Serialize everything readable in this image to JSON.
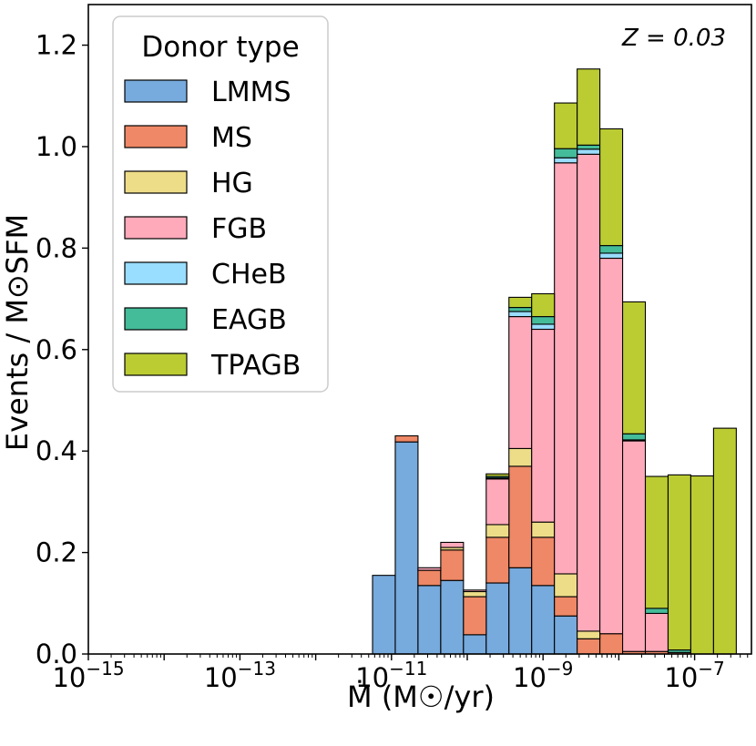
{
  "chart_data": {
    "type": "bar",
    "stacked": true,
    "x_scale": "log",
    "xlim_log10": [
      -15,
      -6.25
    ],
    "ylim": [
      0,
      1.28
    ],
    "x_tick_exponents": [
      -15,
      -13,
      -11,
      -9,
      -7
    ],
    "y_ticks": [
      "0.0",
      "0.2",
      "0.4",
      "0.6",
      "0.8",
      "1.0",
      "1.2"
    ],
    "y_tick_values": [
      0,
      0.2,
      0.4,
      0.6,
      0.8,
      1.0,
      1.2
    ],
    "xlabel": "Ṁ (M☉/yr)",
    "ylabel": "Events / M⊙SFM",
    "annotation": "Z = 0.03",
    "legend": {
      "title": "Donor type",
      "location": "top-left"
    },
    "bin_edges_log10": [
      -11.25,
      -10.95,
      -10.65,
      -10.35,
      -10.05,
      -9.75,
      -9.45,
      -9.15,
      -8.85,
      -8.55,
      -8.25,
      -7.95,
      -7.65,
      -7.35,
      -7.05,
      -6.75,
      -6.45
    ],
    "series": [
      {
        "name": "LMMS",
        "color": "#77aadd",
        "values": [
          0.155,
          0.418,
          0.135,
          0.145,
          0.038,
          0.14,
          0.17,
          0.135,
          0.075,
          0.0,
          0.0,
          0.0,
          0.0,
          0.0,
          0.0,
          0.0,
          0.0
        ]
      },
      {
        "name": "MS",
        "color": "#ee8866",
        "values": [
          0.0,
          0.012,
          0.03,
          0.06,
          0.075,
          0.09,
          0.2,
          0.095,
          0.038,
          0.03,
          0.04,
          0.005,
          0.005,
          0.003,
          0.0,
          0.0,
          0.0
        ]
      },
      {
        "name": "HG",
        "color": "#eedd88",
        "values": [
          0.0,
          0.0,
          0.0,
          0.005,
          0.01,
          0.025,
          0.035,
          0.03,
          0.045,
          0.015,
          0.0,
          0.0,
          0.0,
          0.0,
          0.0,
          0.0,
          0.0
        ]
      },
      {
        "name": "FGB",
        "color": "#ffaabb",
        "values": [
          0.0,
          0.0,
          0.005,
          0.01,
          0.003,
          0.09,
          0.26,
          0.38,
          0.81,
          0.94,
          0.74,
          0.415,
          0.075,
          0.0,
          0.0,
          0.0,
          0.0
        ]
      },
      {
        "name": "CHeB",
        "color": "#99ddff",
        "values": [
          0.0,
          0.0,
          0.0,
          0.0,
          0.0,
          0.002,
          0.01,
          0.01,
          0.01,
          0.01,
          0.01,
          0.002,
          0.0,
          0.0,
          0.0,
          0.0,
          0.0
        ]
      },
      {
        "name": "EAGB",
        "color": "#44bb99",
        "values": [
          0.0,
          0.0,
          0.0,
          0.0,
          0.0,
          0.003,
          0.008,
          0.015,
          0.018,
          0.008,
          0.015,
          0.012,
          0.01,
          0.005,
          0.0,
          0.0,
          0.0
        ]
      },
      {
        "name": "TPAGB",
        "color": "#bbcc33",
        "values": [
          0.0,
          0.0,
          0.0,
          0.0,
          0.0,
          0.005,
          0.02,
          0.045,
          0.09,
          0.15,
          0.23,
          0.26,
          0.26,
          0.345,
          0.0,
          0.0,
          0.0
        ]
      }
    ],
    "extra_bars": [
      {
        "name": "TPAGB",
        "bin_index": 14,
        "value": 0.351
      },
      {
        "name": "TPAGB",
        "bin_index": 15,
        "value": 0.445
      }
    ]
  }
}
